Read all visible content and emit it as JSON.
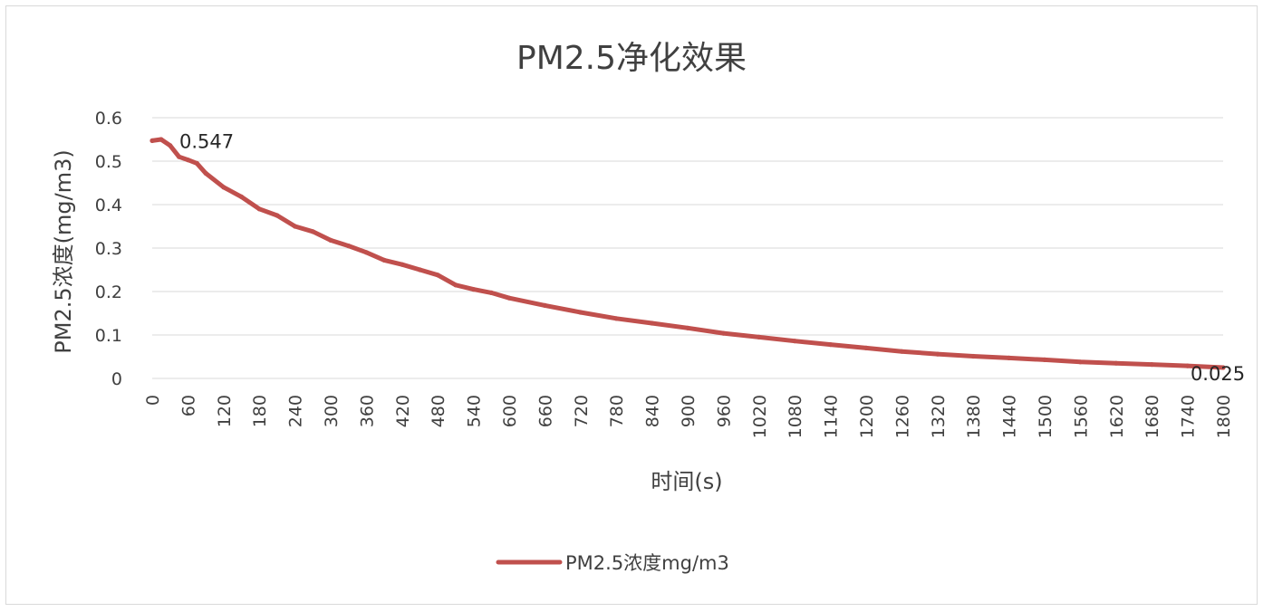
{
  "chart_data": {
    "type": "line",
    "title": "PM2.5净化效果",
    "xlabel": "时间(s)",
    "ylabel": "PM2.5浓度(mg/m3)",
    "ylim": [
      0,
      0.6
    ],
    "yticks": [
      "0",
      "0.1",
      "0.2",
      "0.3",
      "0.4",
      "0.5",
      "0.6"
    ],
    "xlim": [
      0,
      1800
    ],
    "xticks": [
      "0",
      "60",
      "120",
      "180",
      "240",
      "300",
      "360",
      "420",
      "480",
      "540",
      "600",
      "660",
      "720",
      "780",
      "840",
      "900",
      "960",
      "1020",
      "1080",
      "1140",
      "1200",
      "1260",
      "1320",
      "1380",
      "1440",
      "1500",
      "1560",
      "1620",
      "1680",
      "1740",
      "1800"
    ],
    "grid": true,
    "legend_position": "bottom",
    "series": [
      {
        "name": "PM2.5浓度mg/m3",
        "color": "#c0504d",
        "x": [
          0,
          15,
          30,
          45,
          60,
          75,
          90,
          120,
          150,
          180,
          210,
          240,
          270,
          300,
          330,
          360,
          390,
          420,
          450,
          480,
          510,
          540,
          570,
          600,
          660,
          720,
          780,
          840,
          900,
          960,
          1020,
          1080,
          1140,
          1200,
          1260,
          1320,
          1380,
          1440,
          1500,
          1560,
          1620,
          1680,
          1740,
          1800
        ],
        "values": [
          0.547,
          0.55,
          0.536,
          0.51,
          0.503,
          0.495,
          0.472,
          0.44,
          0.418,
          0.39,
          0.375,
          0.35,
          0.338,
          0.318,
          0.305,
          0.29,
          0.272,
          0.262,
          0.25,
          0.238,
          0.215,
          0.205,
          0.197,
          0.185,
          0.168,
          0.152,
          0.138,
          0.127,
          0.116,
          0.104,
          0.095,
          0.086,
          0.078,
          0.07,
          0.062,
          0.056,
          0.051,
          0.047,
          0.043,
          0.038,
          0.035,
          0.032,
          0.029,
          0.025
        ]
      }
    ],
    "data_labels": [
      {
        "x": 0,
        "value": 0.547,
        "text": "0.547"
      },
      {
        "x": 1800,
        "value": 0.025,
        "text": "0.025"
      }
    ]
  }
}
